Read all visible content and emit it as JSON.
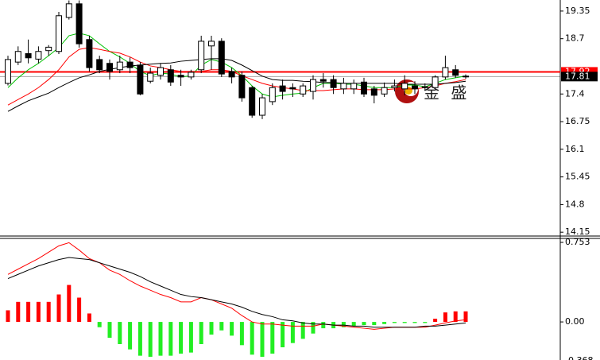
{
  "chart_data": [
    {
      "type": "candlestick",
      "open": [
        17.65,
        18.15,
        18.35,
        18.22,
        18.42,
        18.4,
        19.2,
        19.52,
        18.68,
        18.21,
        18.12,
        17.97,
        18.15,
        18.08,
        17.7,
        17.84,
        17.97,
        17.84,
        17.8,
        17.97,
        18.53,
        18.64,
        17.93,
        17.84,
        17.55,
        16.9,
        17.22,
        17.59,
        17.55,
        17.4,
        17.46,
        17.74,
        17.74,
        17.52,
        17.52,
        17.68,
        17.52,
        17.4,
        17.55,
        17.52,
        17.59,
        17.57,
        17.55,
        17.8,
        17.97,
        17.82
      ],
      "close": [
        18.21,
        18.4,
        18.25,
        18.4,
        18.5,
        19.24,
        19.52,
        18.58,
        18.02,
        17.97,
        17.93,
        18.15,
        18.02,
        17.4,
        17.89,
        18.02,
        17.68,
        17.8,
        17.91,
        18.64,
        18.64,
        17.87,
        17.8,
        17.31,
        16.9,
        17.31,
        17.55,
        17.46,
        17.52,
        17.59,
        17.74,
        17.7,
        17.55,
        17.65,
        17.65,
        17.4,
        17.37,
        17.55,
        17.59,
        17.65,
        17.52,
        17.55,
        17.8,
        18.02,
        17.84,
        17.81
      ],
      "high": [
        18.3,
        18.52,
        18.68,
        18.52,
        18.55,
        19.33,
        19.6,
        19.6,
        18.77,
        18.3,
        18.21,
        18.3,
        18.26,
        18.15,
        18.02,
        18.12,
        18.08,
        17.97,
        17.97,
        18.77,
        18.77,
        18.71,
        18.02,
        17.93,
        17.59,
        17.4,
        17.65,
        17.74,
        17.65,
        17.65,
        17.84,
        17.89,
        17.84,
        17.78,
        17.74,
        17.78,
        17.59,
        17.67,
        17.74,
        17.84,
        17.7,
        17.65,
        17.84,
        18.3,
        18.08,
        17.86
      ],
      "low": [
        17.6,
        18.08,
        18.12,
        18.12,
        18.3,
        18.34,
        19.15,
        18.49,
        17.93,
        17.89,
        17.74,
        17.89,
        17.89,
        17.37,
        17.65,
        17.74,
        17.59,
        17.59,
        17.74,
        17.89,
        17.97,
        17.8,
        17.65,
        17.22,
        16.84,
        16.81,
        17.14,
        17.27,
        17.33,
        17.33,
        17.27,
        17.55,
        17.4,
        17.4,
        17.4,
        17.33,
        17.18,
        17.33,
        17.46,
        17.37,
        17.4,
        17.48,
        17.48,
        17.74,
        17.78,
        17.76
      ],
      "series": [
        {
          "color": "#00c000",
          "values": [
            17.55,
            17.78,
            17.97,
            18.12,
            18.3,
            18.49,
            18.77,
            18.83,
            18.77,
            18.58,
            18.4,
            18.27,
            18.12,
            17.93,
            17.83,
            17.89,
            17.87,
            17.8,
            17.83,
            18.08,
            18.21,
            18.15,
            18.02,
            17.83,
            17.59,
            17.4,
            17.33,
            17.37,
            17.4,
            17.42,
            17.55,
            17.65,
            17.65,
            17.63,
            17.63,
            17.59,
            17.55,
            17.55,
            17.55,
            17.61,
            17.61,
            17.57,
            17.65,
            17.74,
            17.78,
            17.82
          ]
        },
        {
          "color": "#ff0000",
          "values": [
            17.14,
            17.27,
            17.4,
            17.55,
            17.74,
            17.97,
            18.27,
            18.45,
            18.49,
            18.45,
            18.4,
            18.36,
            18.27,
            18.15,
            18.06,
            18.02,
            17.97,
            17.93,
            17.93,
            17.93,
            17.97,
            17.97,
            17.93,
            17.83,
            17.74,
            17.65,
            17.59,
            17.55,
            17.52,
            17.48,
            17.48,
            17.48,
            17.5,
            17.52,
            17.52,
            17.5,
            17.5,
            17.5,
            17.52,
            17.52,
            17.52,
            17.55,
            17.59,
            17.65,
            17.69,
            17.74
          ]
        },
        {
          "color": "#000000",
          "values": [
            16.99,
            17.12,
            17.24,
            17.33,
            17.42,
            17.55,
            17.67,
            17.78,
            17.85,
            17.93,
            17.98,
            18.02,
            18.06,
            18.08,
            18.1,
            18.12,
            18.13,
            18.17,
            18.19,
            18.21,
            18.23,
            18.23,
            18.19,
            18.08,
            17.95,
            17.82,
            17.74,
            17.72,
            17.72,
            17.7,
            17.69,
            17.67,
            17.67,
            17.65,
            17.65,
            17.65,
            17.65,
            17.65,
            17.65,
            17.63,
            17.63,
            17.63,
            17.63,
            17.65,
            17.67,
            17.7
          ]
        }
      ],
      "price_lines": [
        {
          "value": 17.92,
          "color": "#ff0000"
        },
        {
          "value": 17.81,
          "color": "#000000"
        }
      ],
      "ylim": [
        14.06,
        19.61
      ],
      "yticks": [
        19.35,
        18.7,
        17.4,
        16.75,
        16.1,
        15.45,
        14.8,
        14.15
      ],
      "watermark": "金 盛"
    },
    {
      "type": "macd",
      "histogram": [
        0.11,
        0.19,
        0.19,
        0.19,
        0.19,
        0.26,
        0.35,
        0.23,
        0.08,
        -0.05,
        -0.15,
        -0.21,
        -0.26,
        -0.32,
        -0.33,
        -0.32,
        -0.32,
        -0.3,
        -0.29,
        -0.21,
        -0.12,
        -0.08,
        -0.13,
        -0.22,
        -0.31,
        -0.33,
        -0.3,
        -0.24,
        -0.2,
        -0.16,
        -0.11,
        -0.06,
        -0.06,
        -0.05,
        -0.04,
        -0.03,
        -0.03,
        -0.02,
        -0.01,
        -0.01,
        -0.01,
        -0.01,
        0.03,
        0.09,
        0.1,
        0.1
      ],
      "positive_color": "#ff0000",
      "negative_color": "#22ee22",
      "series": [
        {
          "color": "#ff0000",
          "values": [
            0.45,
            0.5,
            0.55,
            0.6,
            0.66,
            0.72,
            0.75,
            0.68,
            0.6,
            0.56,
            0.49,
            0.45,
            0.39,
            0.34,
            0.3,
            0.26,
            0.23,
            0.19,
            0.19,
            0.23,
            0.21,
            0.17,
            0.13,
            0.06,
            0.0,
            -0.02,
            -0.02,
            -0.03,
            -0.04,
            -0.04,
            -0.04,
            -0.02,
            -0.03,
            -0.04,
            -0.05,
            -0.06,
            -0.07,
            -0.06,
            -0.05,
            -0.05,
            -0.05,
            -0.05,
            -0.03,
            -0.01,
            0.01,
            0.02
          ]
        },
        {
          "color": "#000000",
          "values": [
            0.41,
            0.45,
            0.49,
            0.53,
            0.56,
            0.59,
            0.61,
            0.6,
            0.59,
            0.56,
            0.53,
            0.5,
            0.47,
            0.43,
            0.38,
            0.34,
            0.3,
            0.26,
            0.24,
            0.23,
            0.21,
            0.19,
            0.17,
            0.14,
            0.1,
            0.07,
            0.05,
            0.02,
            0.01,
            -0.01,
            -0.02,
            -0.02,
            -0.03,
            -0.03,
            -0.04,
            -0.04,
            -0.05,
            -0.05,
            -0.05,
            -0.05,
            -0.05,
            -0.04,
            -0.04,
            -0.03,
            -0.02,
            -0.01
          ]
        }
      ],
      "ylim": [
        -0.368,
        0.753
      ],
      "yticks": [
        0.753,
        {
          "value": 0,
          "label": "0.00"
        },
        -0.368
      ]
    }
  ]
}
